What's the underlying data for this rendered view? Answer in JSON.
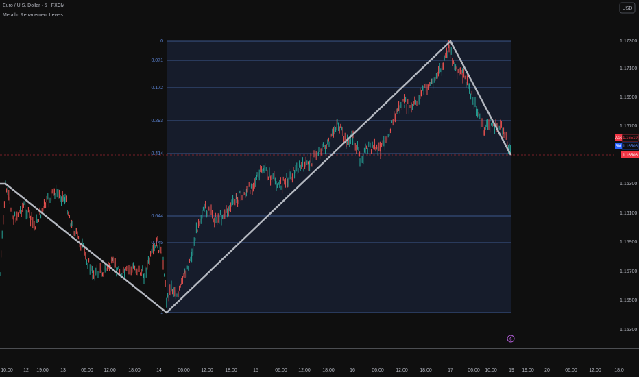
{
  "header": {
    "symbol": "Euro / U.S. Dollar · 5 · FXCM",
    "indicator": "Metallic Retracement Levels",
    "currency": "USD"
  },
  "fib_levels": [
    "0",
    "0.071",
    "0.172",
    "0.293",
    "0.414",
    "0.644",
    "0.745",
    "1"
  ],
  "price_axis": [
    "1.17300",
    "1.17100",
    "1.16900",
    "1.16700",
    "1.16300",
    "1.16100",
    "1.15900",
    "1.15700",
    "1.15500",
    "1.15300"
  ],
  "quotes": {
    "ask_label": "Ask",
    "ask": "1.16519",
    "bid_label": "Bid",
    "bid": "1.16506",
    "last": "1.16506"
  },
  "time_axis": [
    "10:00",
    "12",
    "19:00",
    "13",
    "06:00",
    "12:00",
    "18:00",
    "14",
    "06:00",
    "12:00",
    "18:00",
    "15",
    "06:00",
    "12:00",
    "18:00",
    "16",
    "06:00",
    "12:00",
    "18:00",
    "17",
    "06:00",
    "10:00",
    "19",
    "19:00",
    "20",
    "06:00",
    "12:00",
    "18:0"
  ]
}
